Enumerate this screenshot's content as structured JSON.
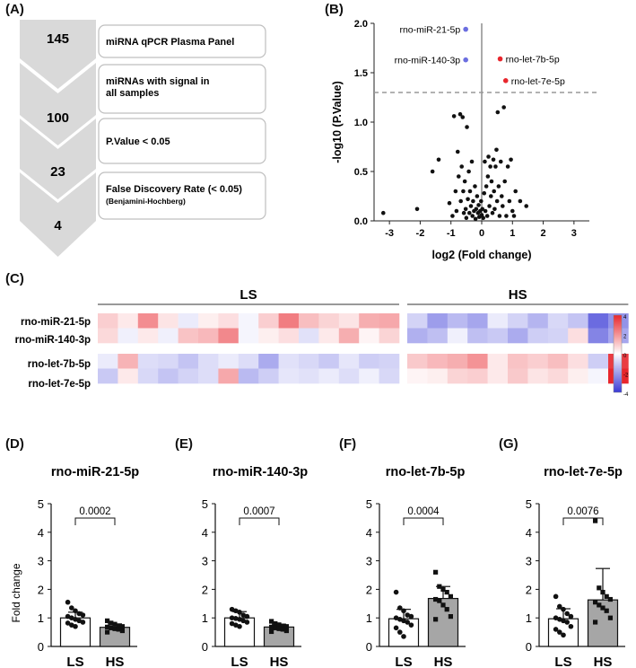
{
  "panel_labels": [
    "(A)",
    "(B)",
    "(C)",
    "(D)",
    "(E)",
    "(F)",
    "(G)"
  ],
  "colors": {
    "funnel_gray": "#d9d9d9",
    "box_border": "#bfbfbf",
    "heatmap_red": "#e8262d",
    "heatmap_blue": "#3a3ad6",
    "volcano_red": "#e8262d",
    "volcano_blue": "#6b6ee0",
    "bar_ls": "#ffffff",
    "bar_hs": "#a6a6a6"
  },
  "funnel": {
    "steps": [
      {
        "count": "145",
        "label": "miRNA qPCR Plasma Panel",
        "sublabel": ""
      },
      {
        "count": "100",
        "label": "miRNAs with signal in all samples",
        "sublabel": ""
      },
      {
        "count": "23",
        "label": "P.Value < 0.05",
        "sublabel": ""
      },
      {
        "count": "4",
        "label": "False Discovery Rate (< 0.05)",
        "sublabel": "(Benjamini-Hochberg)"
      }
    ]
  },
  "chart_data": [
    {
      "id": "volcano",
      "type": "scatter",
      "title": "",
      "xlabel": "log2 (Fold change)",
      "ylabel": "-log10 (P.Value)",
      "xlim": [
        -3.5,
        3.5
      ],
      "ylim": [
        0,
        2.0
      ],
      "xticks": [
        -3,
        -2,
        -1,
        0,
        1,
        2,
        3
      ],
      "yticks": [
        0.0,
        0.5,
        1.0,
        1.5,
        2.0
      ],
      "threshold_y": 1.3,
      "labeled_points": [
        {
          "name": "rno-miR-21-5p",
          "x": -0.52,
          "y": 1.94,
          "color": "#6b6ee0"
        },
        {
          "name": "rno-miR-140-3p",
          "x": -0.52,
          "y": 1.63,
          "color": "#6b6ee0"
        },
        {
          "name": "rno-let-7b-5p",
          "x": 0.6,
          "y": 1.64,
          "color": "#e8262d"
        },
        {
          "name": "rno-let-7e-5p",
          "x": 0.78,
          "y": 1.42,
          "color": "#e8262d"
        }
      ],
      "points": [
        [
          -3.2,
          0.08
        ],
        [
          -2.1,
          0.12
        ],
        [
          -1.6,
          0.5
        ],
        [
          -1.4,
          0.62
        ],
        [
          -1.05,
          0.18
        ],
        [
          -0.95,
          0.05
        ],
        [
          -0.9,
          1.06
        ],
        [
          -0.85,
          0.3
        ],
        [
          -0.82,
          0.1
        ],
        [
          -0.78,
          0.7
        ],
        [
          -0.75,
          0.45
        ],
        [
          -0.7,
          1.08
        ],
        [
          -0.68,
          0.2
        ],
        [
          -0.65,
          0.55
        ],
        [
          -0.62,
          1.05
        ],
        [
          -0.6,
          0.3
        ],
        [
          -0.58,
          0.08
        ],
        [
          -0.55,
          0.4
        ],
        [
          -0.52,
          0.12
        ],
        [
          -0.5,
          0.03
        ],
        [
          -0.48,
          0.95
        ],
        [
          -0.45,
          0.22
        ],
        [
          -0.42,
          0.5
        ],
        [
          -0.4,
          0.08
        ],
        [
          -0.38,
          0.3
        ],
        [
          -0.35,
          0.15
        ],
        [
          -0.32,
          0.6
        ],
        [
          -0.3,
          0.05
        ],
        [
          -0.28,
          0.2
        ],
        [
          -0.25,
          0.1
        ],
        [
          -0.22,
          0.35
        ],
        [
          -0.2,
          0.02
        ],
        [
          -0.18,
          0.12
        ],
        [
          -0.15,
          0.25
        ],
        [
          -0.12,
          0.08
        ],
        [
          -0.1,
          0.16
        ],
        [
          -0.08,
          0.04
        ],
        [
          -0.05,
          0.1
        ],
        [
          -0.02,
          0.2
        ],
        [
          0.0,
          0.06
        ],
        [
          0.02,
          0.12
        ],
        [
          0.05,
          0.03
        ],
        [
          0.08,
          0.28
        ],
        [
          0.1,
          0.6
        ],
        [
          0.12,
          0.1
        ],
        [
          0.15,
          0.35
        ],
        [
          0.18,
          0.05
        ],
        [
          0.2,
          0.45
        ],
        [
          0.22,
          0.65
        ],
        [
          0.25,
          0.15
        ],
        [
          0.28,
          0.55
        ],
        [
          0.3,
          0.25
        ],
        [
          0.32,
          0.4
        ],
        [
          0.35,
          0.08
        ],
        [
          0.38,
          0.62
        ],
        [
          0.4,
          0.3
        ],
        [
          0.42,
          0.12
        ],
        [
          0.45,
          0.55
        ],
        [
          0.48,
          0.72
        ],
        [
          0.5,
          0.2
        ],
        [
          0.52,
          1.1
        ],
        [
          0.55,
          0.35
        ],
        [
          0.58,
          0.05
        ],
        [
          0.62,
          0.6
        ],
        [
          0.65,
          0.25
        ],
        [
          0.68,
          0.15
        ],
        [
          0.72,
          1.15
        ],
        [
          0.75,
          0.4
        ],
        [
          0.8,
          0.05
        ],
        [
          0.85,
          0.55
        ],
        [
          0.9,
          0.2
        ],
        [
          0.95,
          0.62
        ],
        [
          1.0,
          0.1
        ],
        [
          1.05,
          0.05
        ],
        [
          1.1,
          0.3
        ],
        [
          1.25,
          0.2
        ],
        [
          1.45,
          0.15
        ]
      ]
    },
    {
      "id": "heatmap",
      "type": "heatmap",
      "groups": [
        {
          "label": "LS",
          "n": 15
        },
        {
          "label": "HS",
          "n": 11
        }
      ],
      "rows": [
        "rno-miR-21-5p",
        "rno-miR-140-3p",
        "rno-let-7b-5p",
        "rno-let-7e-5p"
      ],
      "colorbar_ticks": [
        "4",
        "2",
        "0",
        "-2",
        "-4"
      ],
      "values": [
        [
          0.9,
          0.4,
          2.1,
          0.5,
          -0.4,
          0.3,
          0.6,
          -0.2,
          0.9,
          2.4,
          1.2,
          0.8,
          0.5,
          1.5,
          1.6,
          -0.9,
          -2.0,
          -1.4,
          -1.8,
          -0.4,
          -0.9,
          -1.5,
          -0.8,
          -1.2,
          -3.0,
          -2.2
        ],
        [
          0.7,
          -0.3,
          0.4,
          -0.3,
          1.1,
          1.3,
          2.2,
          -0.2,
          0.3,
          0.6,
          -0.6,
          0.4,
          1.5,
          0.2,
          0.8,
          -1.6,
          -1.3,
          -0.3,
          -1.3,
          -1.1,
          -1.7,
          -1.0,
          -0.9,
          0.6,
          -2.5,
          -1.8
        ],
        [
          -0.4,
          1.4,
          -0.7,
          -0.8,
          -1.2,
          -0.7,
          -0.4,
          -0.7,
          -1.7,
          -0.6,
          -0.8,
          -1.1,
          -0.5,
          -1.0,
          -0.9,
          1.0,
          1.3,
          1.5,
          2.0,
          0.4,
          1.1,
          0.9,
          1.2,
          0.6,
          -1.0,
          3.6
        ],
        [
          -1.1,
          0.4,
          -0.8,
          -1.2,
          -0.9,
          -0.7,
          1.6,
          -1.4,
          -1.0,
          -0.5,
          -0.6,
          -0.4,
          -0.7,
          -0.3,
          -0.8,
          0.2,
          0.3,
          0.8,
          0.9,
          0.4,
          1.0,
          0.5,
          0.7,
          0.3,
          -0.2,
          4.0
        ]
      ]
    },
    {
      "id": "bar-D",
      "type": "bar",
      "title": "rno-miR-21-5p",
      "ylabel": "Fold change",
      "ylim": [
        0,
        5
      ],
      "yticks": [
        0,
        1,
        2,
        3,
        4,
        5
      ],
      "categories": [
        "LS",
        "HS"
      ],
      "means": [
        1.0,
        0.67
      ],
      "sd": [
        0.2,
        0.12
      ],
      "pvalue": "0.0002",
      "points": [
        [
          1.55,
          1.35,
          1.25,
          1.15,
          1.1,
          1.05,
          1.0,
          0.95,
          0.9,
          0.85,
          0.82,
          0.75,
          0.7
        ],
        [
          0.9,
          0.82,
          0.78,
          0.72,
          0.7,
          0.68,
          0.65,
          0.62,
          0.6,
          0.55,
          0.5
        ]
      ]
    },
    {
      "id": "bar-E",
      "type": "bar",
      "title": "rno-miR-140-3p",
      "ylabel": "",
      "ylim": [
        0,
        5
      ],
      "yticks": [
        0,
        1,
        2,
        3,
        4,
        5
      ],
      "categories": [
        "LS",
        "HS"
      ],
      "means": [
        1.0,
        0.68
      ],
      "sd": [
        0.22,
        0.1
      ],
      "pvalue": "0.0007",
      "points": [
        [
          1.3,
          1.25,
          1.2,
          1.1,
          1.05,
          1.0,
          0.98,
          0.95,
          0.9,
          0.85,
          0.8,
          0.75,
          0.7
        ],
        [
          0.88,
          0.8,
          0.76,
          0.72,
          0.7,
          0.68,
          0.65,
          0.62,
          0.6,
          0.55,
          0.52
        ]
      ]
    },
    {
      "id": "bar-F",
      "type": "bar",
      "title": "rno-let-7b-5p",
      "ylabel": "",
      "ylim": [
        0,
        5
      ],
      "yticks": [
        0,
        1,
        2,
        3,
        4,
        5
      ],
      "categories": [
        "LS",
        "HS"
      ],
      "means": [
        0.97,
        1.68
      ],
      "sd": [
        0.33,
        0.42
      ],
      "pvalue": "0.0004",
      "points": [
        [
          1.9,
          1.35,
          1.25,
          1.1,
          1.05,
          1.0,
          0.95,
          0.9,
          0.85,
          0.75,
          0.65,
          0.5,
          0.35
        ],
        [
          2.6,
          2.1,
          2.0,
          1.9,
          1.75,
          1.65,
          1.6,
          1.45,
          1.3,
          1.05,
          0.95
        ]
      ]
    },
    {
      "id": "bar-G",
      "type": "bar",
      "title": "rno-let-7e-5p",
      "ylabel": "",
      "ylim": [
        0,
        5
      ],
      "yticks": [
        0,
        1,
        2,
        3,
        4,
        5
      ],
      "categories": [
        "LS",
        "HS"
      ],
      "means": [
        0.97,
        1.63
      ],
      "sd": [
        0.35,
        1.1
      ],
      "pvalue": "0.0076",
      "points": [
        [
          1.75,
          1.4,
          1.3,
          1.15,
          1.05,
          1.0,
          0.95,
          0.9,
          0.85,
          0.7,
          0.6,
          0.5,
          0.4
        ],
        [
          4.4,
          2.05,
          1.9,
          1.75,
          1.65,
          1.55,
          1.45,
          1.35,
          1.25,
          1.0,
          0.85
        ]
      ]
    }
  ]
}
